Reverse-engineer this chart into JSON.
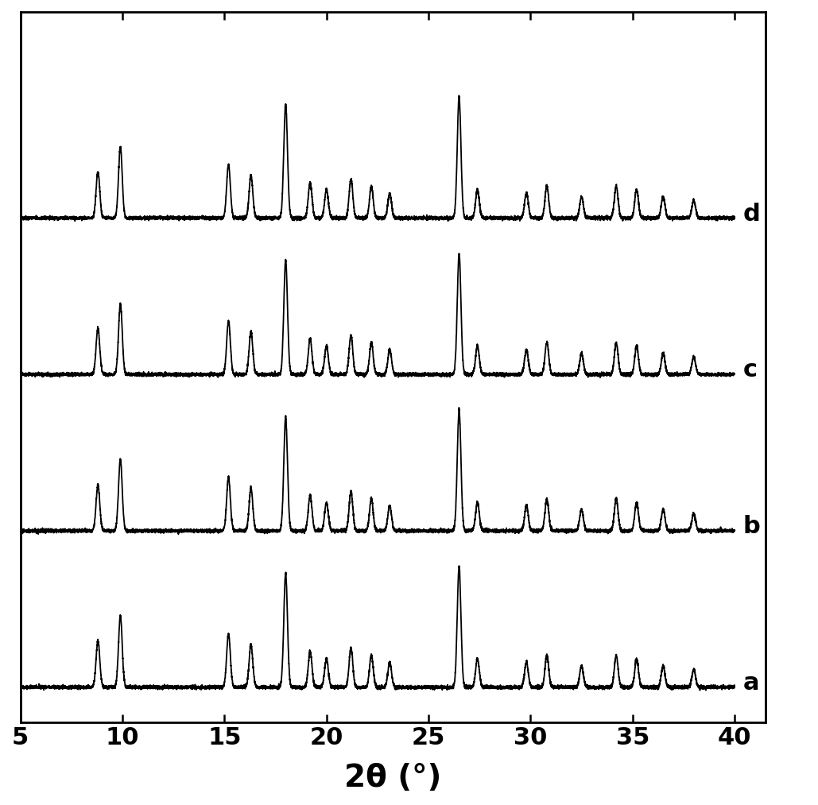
{
  "xlim": [
    5,
    40
  ],
  "xticks": [
    5,
    10,
    15,
    20,
    25,
    30,
    35,
    40
  ],
  "xlabel": "2θ (°)",
  "xlabel_fontsize": 28,
  "xtick_fontsize": 22,
  "line_color": "#000000",
  "background_color": "#ffffff",
  "labels": [
    "a",
    "b",
    "c",
    "d"
  ],
  "label_fontsize": 22,
  "offsets": [
    0,
    2.2,
    4.4,
    6.6
  ],
  "peaks": [
    [
      8.8,
      9.9,
      15.2,
      16.3,
      18.0,
      19.2,
      20.0,
      21.2,
      22.2,
      23.1,
      26.5,
      27.4,
      29.8,
      30.8,
      32.5,
      34.2,
      35.2,
      36.5,
      38.0
    ],
    [
      8.8,
      9.9,
      15.2,
      16.3,
      18.0,
      19.2,
      20.0,
      21.2,
      22.2,
      23.1,
      26.5,
      27.4,
      29.8,
      30.8,
      32.5,
      34.2,
      35.2,
      36.5,
      38.0
    ],
    [
      8.8,
      9.9,
      15.2,
      16.3,
      18.0,
      19.2,
      20.0,
      21.2,
      22.2,
      23.1,
      26.5,
      27.4,
      29.8,
      30.8,
      32.5,
      34.2,
      35.2,
      36.5,
      38.0
    ],
    [
      8.8,
      9.9,
      15.2,
      16.3,
      18.0,
      19.2,
      20.0,
      21.2,
      22.2,
      23.1,
      26.5,
      27.4,
      29.8,
      30.8,
      32.5,
      34.2,
      35.2,
      36.5,
      38.0
    ]
  ],
  "heights_a": [
    0.65,
    1.0,
    0.75,
    0.6,
    1.6,
    0.5,
    0.4,
    0.55,
    0.45,
    0.35,
    1.7,
    0.4,
    0.35,
    0.45,
    0.3,
    0.45,
    0.4,
    0.3,
    0.25
  ],
  "heights_b": [
    0.65,
    1.0,
    0.75,
    0.6,
    1.6,
    0.5,
    0.4,
    0.55,
    0.45,
    0.35,
    1.7,
    0.4,
    0.35,
    0.45,
    0.3,
    0.45,
    0.4,
    0.3,
    0.25
  ],
  "heights_c": [
    0.65,
    1.0,
    0.75,
    0.6,
    1.6,
    0.5,
    0.4,
    0.55,
    0.45,
    0.35,
    1.7,
    0.4,
    0.35,
    0.45,
    0.3,
    0.45,
    0.4,
    0.3,
    0.25
  ],
  "heights_d": [
    0.65,
    1.0,
    0.75,
    0.6,
    1.6,
    0.5,
    0.4,
    0.55,
    0.45,
    0.35,
    1.7,
    0.4,
    0.35,
    0.45,
    0.3,
    0.45,
    0.4,
    0.3,
    0.25
  ],
  "widths": [
    0.09,
    0.09,
    0.09,
    0.09,
    0.09,
    0.09,
    0.09,
    0.09,
    0.09,
    0.09,
    0.09,
    0.09,
    0.09,
    0.09,
    0.09,
    0.09,
    0.09,
    0.09,
    0.09
  ],
  "noise_level": 0.012,
  "figsize": [
    10.29,
    10.13
  ],
  "dpi": 100
}
